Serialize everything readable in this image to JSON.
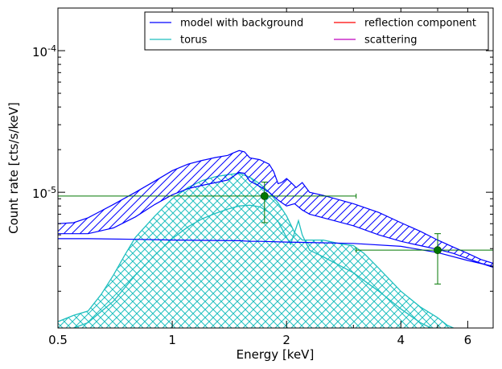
{
  "chart_data": {
    "type": "line",
    "title": "",
    "xlabel": "Energy [keV]",
    "ylabel": "Count rate [cts/s/keV]",
    "x_scale": "log",
    "y_scale": "log",
    "xlim": [
      0.5,
      7.0
    ],
    "ylim": [
      1.1e-06,
      0.0002
    ],
    "x_ticks": [
      {
        "value": 0.5,
        "label": "0.5"
      },
      {
        "value": 1,
        "label": "1"
      },
      {
        "value": 2,
        "label": "2"
      },
      {
        "value": 4,
        "label": "4"
      },
      {
        "value": 6,
        "label": "6"
      }
    ],
    "y_ticks": [
      {
        "value": 1e-05,
        "base": "10",
        "exp": "-5"
      },
      {
        "value": 0.0001,
        "base": "10",
        "exp": "-4"
      }
    ],
    "legend": {
      "placement": "top-right",
      "columns": 2,
      "entries": [
        {
          "label": "model with background",
          "color": "#0000ff"
        },
        {
          "label": "reflection component",
          "color": "#ff0000"
        },
        {
          "label": "torus",
          "color": "#1fbfbf"
        },
        {
          "label": "scattering",
          "color": "#bf00bf"
        }
      ]
    },
    "bands": [
      {
        "series": "model with background",
        "color": "#0000ff",
        "hatch": "diagonal",
        "upper": [
          [
            0.5,
            6e-06
          ],
          [
            0.55,
            6.1e-06
          ],
          [
            0.6,
            6.6e-06
          ],
          [
            0.7,
            8.2e-06
          ],
          [
            0.8,
            1e-05
          ],
          [
            0.9,
            1.2e-05
          ],
          [
            1.0,
            1.42e-05
          ],
          [
            1.1,
            1.58e-05
          ],
          [
            1.2,
            1.68e-05
          ],
          [
            1.3,
            1.76e-05
          ],
          [
            1.4,
            1.82e-05
          ],
          [
            1.45,
            1.9e-05
          ],
          [
            1.5,
            1.97e-05
          ],
          [
            1.55,
            1.93e-05
          ],
          [
            1.6,
            1.75e-05
          ],
          [
            1.7,
            1.7e-05
          ],
          [
            1.8,
            1.58e-05
          ],
          [
            1.85,
            1.4e-05
          ],
          [
            1.9,
            1.15e-05
          ],
          [
            1.95,
            1.18e-05
          ],
          [
            2.0,
            1.25e-05
          ],
          [
            2.05,
            1.18e-05
          ],
          [
            2.12,
            1.08e-05
          ],
          [
            2.2,
            1.17e-05
          ],
          [
            2.3,
            1e-05
          ],
          [
            2.5,
            9.5e-06
          ],
          [
            3.0,
            8.3e-06
          ],
          [
            3.5,
            7.2e-06
          ],
          [
            4.0,
            6.1e-06
          ],
          [
            4.5,
            5.3e-06
          ],
          [
            5.0,
            4.6e-06
          ],
          [
            5.5,
            4.1e-06
          ],
          [
            6.0,
            3.7e-06
          ],
          [
            6.5,
            3.35e-06
          ],
          [
            7.0,
            3.15e-06
          ]
        ],
        "lower": [
          [
            0.5,
            5.1e-06
          ],
          [
            0.6,
            5.1e-06
          ],
          [
            0.7,
            5.6e-06
          ],
          [
            0.8,
            6.7e-06
          ],
          [
            0.9,
            8.2e-06
          ],
          [
            1.0,
            9.6e-06
          ],
          [
            1.1,
            1.06e-05
          ],
          [
            1.2,
            1.12e-05
          ],
          [
            1.3,
            1.17e-05
          ],
          [
            1.4,
            1.22e-05
          ],
          [
            1.5,
            1.38e-05
          ],
          [
            1.55,
            1.36e-05
          ],
          [
            1.6,
            1.2e-05
          ],
          [
            1.7,
            1.1e-05
          ],
          [
            1.8,
            1e-05
          ],
          [
            1.9,
            8.8e-06
          ],
          [
            2.0,
            8e-06
          ],
          [
            2.1,
            8.3e-06
          ],
          [
            2.2,
            7.5e-06
          ],
          [
            2.3,
            7e-06
          ],
          [
            2.5,
            6.6e-06
          ],
          [
            3.0,
            5.8e-06
          ],
          [
            3.5,
            5e-06
          ],
          [
            4.0,
            4.5e-06
          ],
          [
            4.5,
            4.2e-06
          ],
          [
            5.0,
            3.95e-06
          ],
          [
            5.5,
            3.7e-06
          ],
          [
            6.0,
            3.4e-06
          ],
          [
            6.5,
            3.15e-06
          ],
          [
            7.0,
            2.95e-06
          ]
        ],
        "bottom": [
          [
            0.5,
            4.7e-06
          ],
          [
            0.6,
            4.7e-06
          ],
          [
            0.8,
            4.65e-06
          ],
          [
            1.0,
            4.6e-06
          ],
          [
            1.5,
            4.55e-06
          ],
          [
            1.6,
            4.5e-06
          ],
          [
            1.7,
            4.5e-06
          ],
          [
            2.0,
            4.45e-06
          ],
          [
            3.0,
            4.35e-06
          ],
          [
            4.0,
            4.15e-06
          ],
          [
            5.0,
            3.75e-06
          ],
          [
            6.0,
            3.3e-06
          ],
          [
            7.0,
            3e-06
          ]
        ]
      },
      {
        "series": "torus",
        "color": "#1fbfbf",
        "hatch": "cross",
        "upper": [
          [
            0.5,
            1.22e-06
          ],
          [
            0.55,
            1.35e-06
          ],
          [
            0.6,
            1.45e-06
          ],
          [
            0.65,
            1.9e-06
          ],
          [
            0.7,
            2.6e-06
          ],
          [
            0.75,
            3.6e-06
          ],
          [
            0.8,
            4.8e-06
          ],
          [
            0.9,
            6.8e-06
          ],
          [
            1.0,
            9e-06
          ],
          [
            1.1,
            1.08e-05
          ],
          [
            1.2,
            1.21e-05
          ],
          [
            1.3,
            1.29e-05
          ],
          [
            1.4,
            1.33e-05
          ],
          [
            1.5,
            1.36e-05
          ],
          [
            1.6,
            1.28e-05
          ],
          [
            1.7,
            1.15e-05
          ],
          [
            1.8,
            1e-05
          ],
          [
            1.9,
            8.4e-06
          ],
          [
            2.0,
            6.8e-06
          ],
          [
            2.1,
            5.2e-06
          ],
          [
            2.2,
            4.6e-06
          ],
          [
            2.3,
            4.6e-06
          ],
          [
            2.5,
            4.6e-06
          ],
          [
            2.8,
            4.3e-06
          ],
          [
            3.0,
            4.2e-06
          ],
          [
            3.2,
            3.7e-06
          ],
          [
            3.5,
            2.9e-06
          ],
          [
            4.0,
            2e-06
          ],
          [
            4.5,
            1.55e-06
          ],
          [
            5.0,
            1.3e-06
          ],
          [
            5.3,
            1.15e-06
          ],
          [
            5.5,
            1.1e-06
          ]
        ],
        "lower": [
          [
            0.55,
            1.1e-06
          ],
          [
            0.6,
            1.2e-06
          ],
          [
            0.7,
            1.7e-06
          ],
          [
            0.8,
            2.6e-06
          ],
          [
            0.9,
            3.6e-06
          ],
          [
            1.0,
            4.7e-06
          ],
          [
            1.1,
            5.7e-06
          ],
          [
            1.2,
            6.5e-06
          ],
          [
            1.3,
            7.1e-06
          ],
          [
            1.4,
            7.6e-06
          ],
          [
            1.5,
            8e-06
          ],
          [
            1.6,
            8.1e-06
          ],
          [
            1.7,
            7.9e-06
          ],
          [
            1.8,
            7.2e-06
          ],
          [
            1.9,
            6.2e-06
          ],
          [
            2.0,
            4.8e-06
          ],
          [
            2.05,
            4.3e-06
          ],
          [
            2.1,
            5.2e-06
          ],
          [
            2.15,
            6.3e-06
          ],
          [
            2.2,
            5e-06
          ],
          [
            2.3,
            3.9e-06
          ],
          [
            2.5,
            3.5e-06
          ],
          [
            3.0,
            2.7e-06
          ],
          [
            3.5,
            2e-06
          ],
          [
            4.0,
            1.5e-06
          ],
          [
            4.5,
            1.2e-06
          ],
          [
            4.8,
            1.1e-06
          ]
        ]
      }
    ],
    "series": [
      {
        "name": "data",
        "color": "#007700",
        "type": "errorbar",
        "points": [
          {
            "x": 1.75,
            "y": 9.4e-06,
            "xerr": [
              0.5,
              3.05
            ],
            "yerr": [
              6.1e-06,
              1.18e-05
            ]
          },
          {
            "x": 5.0,
            "y": 3.9e-06,
            "xerr": [
              3.05,
              7.0
            ],
            "yerr": [
              2.25e-06,
              5.1e-06
            ]
          }
        ]
      }
    ],
    "grid": false
  }
}
